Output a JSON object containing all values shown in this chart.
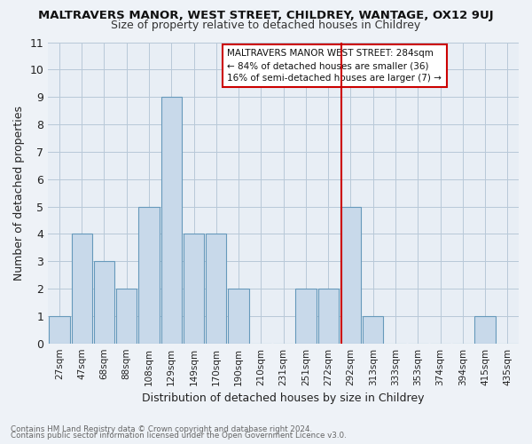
{
  "title": "MALTRAVERS MANOR, WEST STREET, CHILDREY, WANTAGE, OX12 9UJ",
  "subtitle": "Size of property relative to detached houses in Childrey",
  "xlabel": "Distribution of detached houses by size in Childrey",
  "ylabel": "Number of detached properties",
  "bar_labels": [
    "27sqm",
    "47sqm",
    "68sqm",
    "88sqm",
    "108sqm",
    "129sqm",
    "149sqm",
    "170sqm",
    "190sqm",
    "210sqm",
    "231sqm",
    "251sqm",
    "272sqm",
    "292sqm",
    "313sqm",
    "333sqm",
    "353sqm",
    "374sqm",
    "394sqm",
    "415sqm",
    "435sqm"
  ],
  "bar_values": [
    1,
    4,
    3,
    2,
    5,
    9,
    4,
    4,
    2,
    0,
    0,
    2,
    2,
    5,
    1,
    0,
    0,
    0,
    0,
    1,
    0
  ],
  "bar_color": "#c8d9ea",
  "bar_edge_color": "#6699bb",
  "vline_color": "#cc0000",
  "vline_x": 12.6,
  "ylim": [
    0,
    11
  ],
  "yticks": [
    0,
    1,
    2,
    3,
    4,
    5,
    6,
    7,
    8,
    9,
    10,
    11
  ],
  "annotation_title": "MALTRAVERS MANOR WEST STREET: 284sqm",
  "annotation_line1": "← 84% of detached houses are smaller (36)",
  "annotation_line2": "16% of semi-detached houses are larger (7) →",
  "footnote1": "Contains HM Land Registry data © Crown copyright and database right 2024.",
  "footnote2": "Contains public sector information licensed under the Open Government Licence v3.0.",
  "bg_color": "#eef2f7",
  "plot_bg_color": "#e8eef5"
}
